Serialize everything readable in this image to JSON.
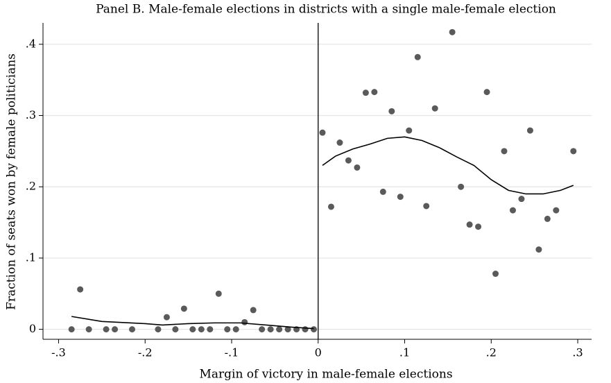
{
  "chart_data": {
    "type": "scatter",
    "title": "Panel B. Male-female elections in districts with a single male-female election",
    "x_label": "Margin of victory in male-female elections",
    "y_label": "Fraction of seats won by female politicians",
    "xlim": [
      -0.318,
      0.316
    ],
    "ylim": [
      -0.014,
      0.43
    ],
    "xticks": [
      {
        "value": -0.3,
        "label": "-.3"
      },
      {
        "value": -0.2,
        "label": "-.2"
      },
      {
        "value": -0.1,
        "label": "-.1"
      },
      0,
      {
        "value": 0.1,
        "label": ".1"
      },
      {
        "value": 0.2,
        "label": ".2"
      },
      {
        "value": 0.3,
        "label": ".3"
      }
    ],
    "yticks": [
      0,
      {
        "value": 0.1,
        "label": ".1"
      },
      {
        "value": 0.2,
        "label": ".2"
      },
      {
        "value": 0.3,
        "label": ".3"
      },
      {
        "value": 0.4,
        "label": ".4"
      }
    ],
    "grid": true,
    "vline": 0,
    "series": [
      {
        "mode": "markers",
        "color": "#5a5a5a",
        "x": [
          -0.285,
          -0.275,
          -0.265,
          -0.245,
          -0.235,
          -0.215,
          -0.185,
          -0.175,
          -0.165,
          -0.155,
          -0.145,
          -0.135,
          -0.125,
          -0.115,
          -0.105,
          -0.095,
          -0.085,
          -0.075,
          -0.065,
          -0.055,
          -0.045,
          -0.035,
          -0.025,
          -0.015,
          -0.005,
          0.005,
          0.015,
          0.025,
          0.035,
          0.045,
          0.055,
          0.065,
          0.075,
          0.085,
          0.095,
          0.105,
          0.115,
          0.125,
          0.135,
          0.155,
          0.165,
          0.175,
          0.185,
          0.195,
          0.205,
          0.215,
          0.225,
          0.235,
          0.245,
          0.255,
          0.265,
          0.275,
          0.295
        ],
        "values": [
          0,
          0.056,
          0,
          0,
          0,
          0,
          0,
          0.017,
          0,
          0.029,
          0,
          0,
          0,
          0.05,
          0,
          0,
          0.01,
          0.027,
          0,
          0,
          0,
          0,
          0,
          0,
          0,
          0.276,
          0.172,
          0.262,
          0.237,
          0.227,
          0.332,
          0.333,
          0.193,
          0.306,
          0.186,
          0.279,
          0.382,
          0.173,
          0.31,
          0.417,
          0.2,
          0.147,
          0.144,
          0.333,
          0.078,
          0.25,
          0.167,
          0.183,
          0.279,
          0.112,
          0.155,
          0.167,
          0.25
        ]
      },
      {
        "mode": "line",
        "color": "#000000",
        "x": [
          -0.285,
          -0.25,
          -0.2,
          -0.18,
          -0.15,
          -0.12,
          -0.09,
          -0.06,
          -0.03,
          -0.005
        ],
        "values": [
          0.018,
          0.011,
          0.008,
          0.006,
          0.008,
          0.009,
          0.009,
          0.006,
          0.003,
          0.001
        ]
      },
      {
        "mode": "line",
        "color": "#000000",
        "x": [
          0.005,
          0.02,
          0.04,
          0.06,
          0.08,
          0.1,
          0.12,
          0.14,
          0.16,
          0.18,
          0.2,
          0.22,
          0.24,
          0.26,
          0.28,
          0.295
        ],
        "values": [
          0.23,
          0.243,
          0.253,
          0.26,
          0.268,
          0.27,
          0.265,
          0.255,
          0.242,
          0.23,
          0.21,
          0.195,
          0.19,
          0.19,
          0.195,
          0.202
        ]
      }
    ]
  }
}
